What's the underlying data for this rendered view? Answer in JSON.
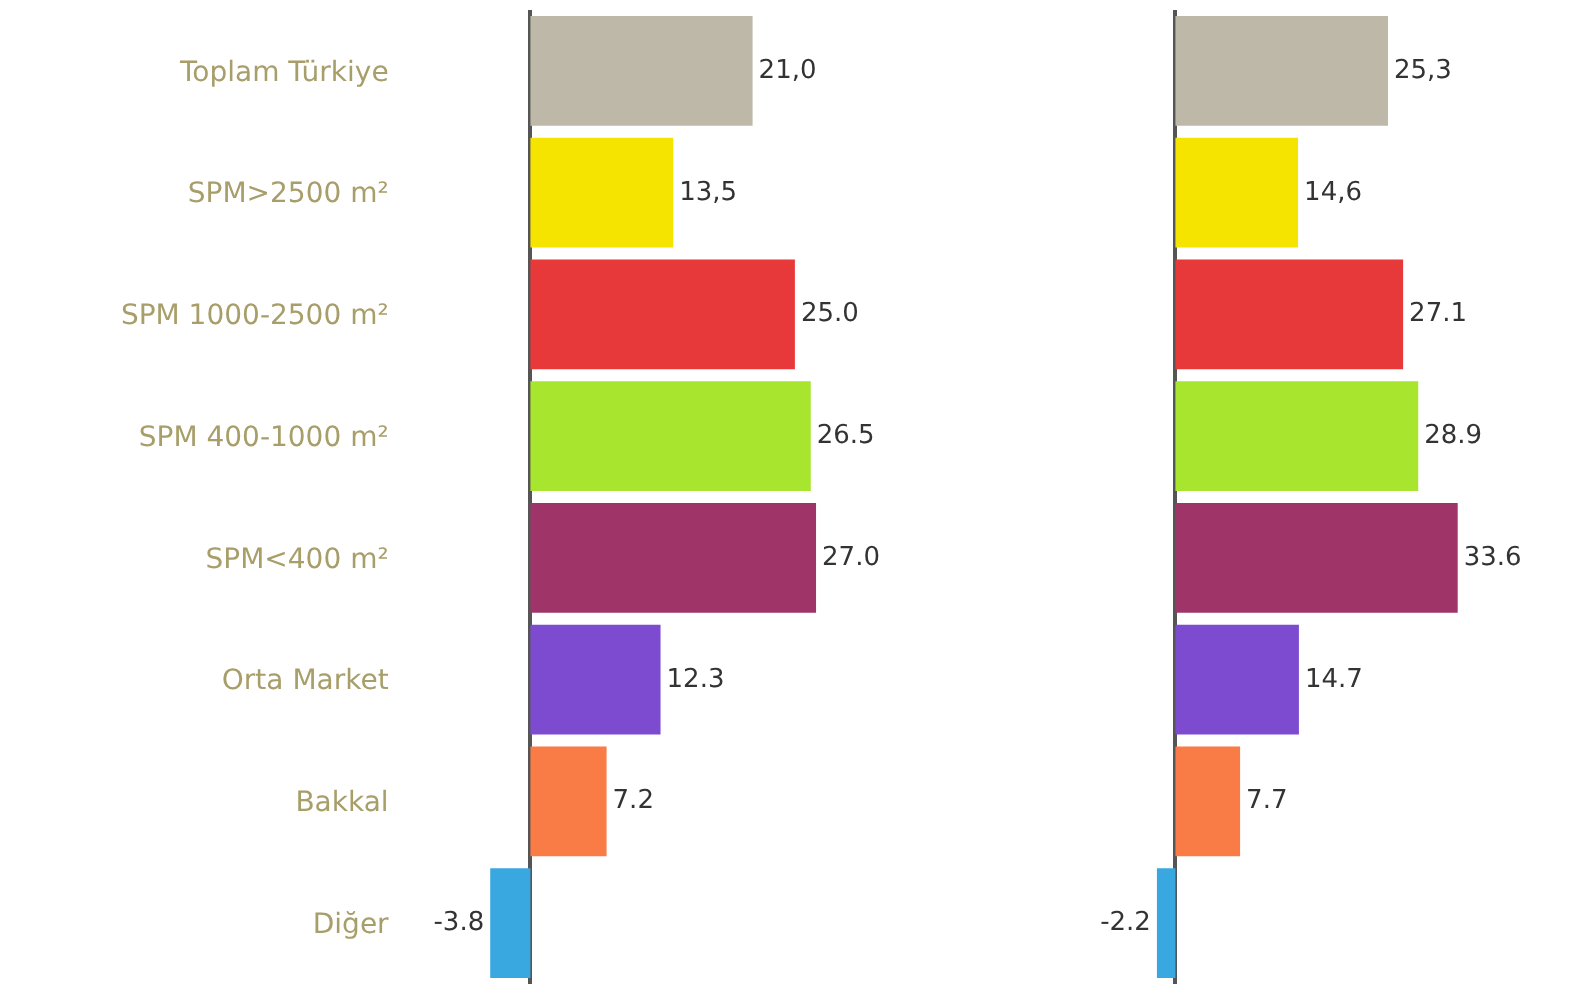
{
  "chart_data": [
    {
      "type": "bar",
      "orientation": "horizontal",
      "tick_labels": "y",
      "categories": [
        "Toplam Türkiye",
        "SPM>2500 m²",
        "SPM 1000-2500 m²",
        "SPM 400-1000 m²",
        "SPM<400 m²",
        "Orta Market",
        "Bakkal",
        "Diğer"
      ],
      "values": [
        21.0,
        13.5,
        25.0,
        26.5,
        27.0,
        12.3,
        7.2,
        -3.8
      ],
      "value_labels": [
        "21,0",
        "13,5",
        "25.0",
        "26.5",
        "27.0",
        "12.3",
        "7.2",
        "-3.8"
      ],
      "colors": [
        "#bdb8a8",
        "#f5e400",
        "#e8393a",
        "#a8e52e",
        "#9e3468",
        "#7d4bd0",
        "#f97b45",
        "#3aa8e0"
      ]
    },
    {
      "type": "bar",
      "orientation": "horizontal",
      "tick_labels": false,
      "categories": [
        null,
        null,
        null,
        null,
        null,
        null,
        null,
        null
      ],
      "values": [
        25.3,
        14.6,
        27.1,
        28.9,
        33.6,
        14.7,
        7.7,
        -2.2
      ],
      "value_labels": [
        "25,3",
        "14,6",
        "27.1",
        "28.9",
        "33.6",
        "14.7",
        "7.7",
        "-2.2"
      ],
      "colors": [
        "#bdb8a8",
        "#f5e400",
        "#e8393a",
        "#a8e52e",
        "#9e3468",
        "#7d4bd0",
        "#f97b45",
        "#3aa8e0"
      ]
    }
  ]
}
